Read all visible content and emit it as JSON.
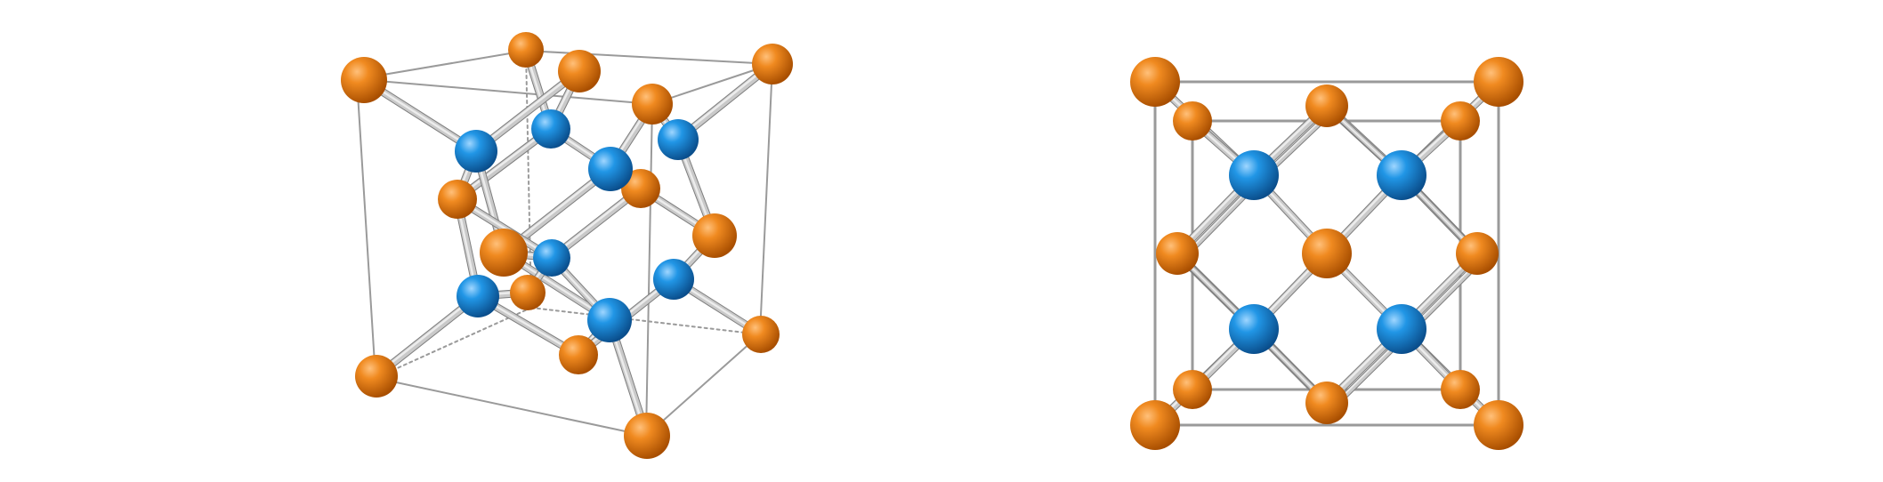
{
  "figure": {
    "panels": [
      {
        "name": "perspective-view",
        "view": "perspective"
      },
      {
        "name": "top-down-view",
        "view": "orthographic-along-axis"
      }
    ]
  },
  "atoms": {
    "orange": {
      "color": "#e0780e",
      "role": "corner-and-face-atom"
    },
    "blue": {
      "color": "#1e8ad8",
      "role": "tetrahedral-interior-atom"
    }
  },
  "bond_color": "#a8a8a8",
  "cell_edge_color": "#9a9a9a"
}
